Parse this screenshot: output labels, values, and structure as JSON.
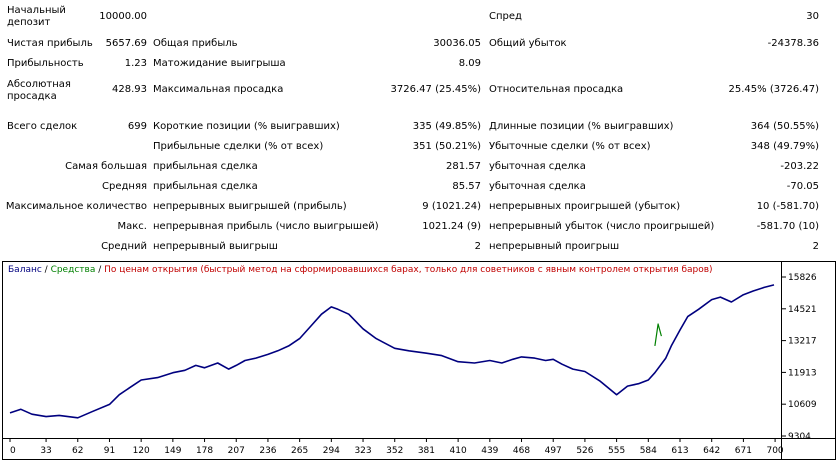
{
  "report": {
    "deposit_label": "Начальный депозит",
    "deposit_value": "10000.00",
    "spread_label": "Спред",
    "spread_value": "30",
    "net_profit_label": "Чистая прибыль",
    "net_profit_value": "5657.69",
    "gross_profit_label": "Общая прибыль",
    "gross_profit_value": "30036.05",
    "gross_loss_label": "Общий убыток",
    "gross_loss_value": "-24378.36",
    "profitability_label": "Прибыльность",
    "profitability_value": "1.23",
    "expected_payoff_label": "Матожидание выигрыша",
    "expected_payoff_value": "8.09",
    "abs_drawdown_label": "Абсолютная просадка",
    "abs_drawdown_value": "428.93",
    "max_drawdown_label": "Максимальная просадка",
    "max_drawdown_value": "3726.47 (25.45%)",
    "rel_drawdown_label": "Относительная просадка",
    "rel_drawdown_value": "25.45% (3726.47)",
    "total_trades_label": "Всего сделок",
    "total_trades_value": "699",
    "short_label": "Короткие позиции (% выигравших)",
    "short_value": "335 (49.85%)",
    "long_label": "Длинные позиции (% выигравших)",
    "long_value": "364 (50.55%)",
    "profit_trades_label": "Прибыльные сделки (% от всех)",
    "profit_trades_value": "351 (50.21%)",
    "loss_trades_label": "Убыточные сделки (% от всех)",
    "loss_trades_value": "348 (49.79%)",
    "largest_label": "Самая большая",
    "largest_profit_label": "прибыльная сделка",
    "largest_profit_value": "281.57",
    "largest_loss_label": "убыточная сделка",
    "largest_loss_value": "-203.22",
    "average_label": "Средняя",
    "average_profit_label": "прибыльная сделка",
    "average_profit_value": "85.57",
    "average_loss_label": "убыточная сделка",
    "average_loss_value": "-70.05",
    "max_count_label": "Максимальное количество",
    "max_consec_wins_label": "непрерывных выигрышей (прибыль)",
    "max_consec_wins_value": "9 (1021.24)",
    "max_consec_losses_label": "непрерывных проигрышей (убыток)",
    "max_consec_losses_value": "10 (-581.70)",
    "max_label": "Макс.",
    "max_consec_profit_label": "непрерывная прибыль (число выигрышей)",
    "max_consec_profit_value": "1021.24 (9)",
    "max_consec_loss_label": "непрерывный убыток (число проигрышей)",
    "max_consec_loss_value": "-581.70 (10)",
    "avg_consec_label": "Средний",
    "avg_consec_wins_label": "непрерывный выигрыш",
    "avg_consec_wins_value": "2",
    "avg_consec_losses_label": "непрерывный проигрыш",
    "avg_consec_losses_value": "2"
  },
  "chart_data": {
    "type": "line",
    "legend": {
      "balance": "Баланс",
      "sep1": " / ",
      "equity": "Средства",
      "sep2": " / ",
      "mode": "По ценам открытия (быстрый метод на сформировавшихся барах, только для советников с явным контролем открытия баров)"
    },
    "x_ticks": [
      "0",
      "33",
      "62",
      "91",
      "120",
      "149",
      "178",
      "207",
      "236",
      "265",
      "294",
      "323",
      "352",
      "381",
      "410",
      "439",
      "468",
      "497",
      "526",
      "555",
      "584",
      "613",
      "642",
      "671",
      "700"
    ],
    "y_ticks": [
      "15826",
      "14521",
      "13217",
      "11913",
      "10609",
      "9304"
    ],
    "xlim": [
      0,
      699
    ],
    "ylim": [
      9304,
      15826
    ],
    "series": [
      {
        "name": "Баланс",
        "x": [
          0,
          10,
          20,
          33,
          45,
          62,
          75,
          91,
          100,
          110,
          120,
          135,
          149,
          160,
          170,
          178,
          190,
          200,
          207,
          215,
          225,
          236,
          245,
          255,
          265,
          275,
          285,
          294,
          300,
          310,
          323,
          335,
          352,
          365,
          381,
          395,
          410,
          425,
          439,
          450,
          460,
          468,
          480,
          490,
          497,
          505,
          515,
          526,
          540,
          555,
          565,
          575,
          584,
          590,
          600,
          605,
          613,
          620,
          630,
          642,
          650,
          660,
          671,
          680,
          690,
          699
        ],
        "y": [
          10250,
          10400,
          10200,
          10100,
          10150,
          10050,
          10300,
          10600,
          11000,
          11300,
          11600,
          11700,
          11900,
          12000,
          12200,
          12100,
          12300,
          12050,
          12200,
          12400,
          12500,
          12650,
          12800,
          13000,
          13300,
          13800,
          14300,
          14600,
          14500,
          14300,
          13700,
          13300,
          12900,
          12800,
          12700,
          12600,
          12350,
          12300,
          12400,
          12300,
          12450,
          12550,
          12500,
          12400,
          12450,
          12250,
          12050,
          11950,
          11550,
          11000,
          11350,
          11450,
          11600,
          11900,
          12500,
          13000,
          13650,
          14200,
          14500,
          14900,
          15000,
          14800,
          15100,
          15250,
          15400,
          15500
        ]
      },
      {
        "name": "Средства",
        "x": [
          590,
          593,
          596
        ],
        "y": [
          13000,
          13900,
          13400
        ]
      }
    ]
  }
}
